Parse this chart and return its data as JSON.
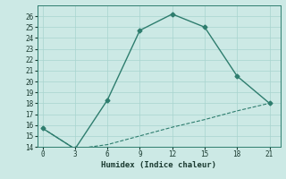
{
  "title": "",
  "xlabel": "Humidex (Indice chaleur)",
  "ylabel": "",
  "bg_color": "#cce9e5",
  "line_color": "#2e7d6e",
  "grid_color_major": "#a8d4cf",
  "grid_color_minor": "#d4eeeb",
  "series1_x": [
    0,
    3,
    6,
    9,
    12,
    15,
    18,
    21
  ],
  "series1_y": [
    15.7,
    13.8,
    18.3,
    24.7,
    26.2,
    25.0,
    20.5,
    18.0
  ],
  "series2_x": [
    0,
    3,
    6,
    9,
    12,
    15,
    18,
    21
  ],
  "series2_y": [
    15.7,
    13.8,
    14.2,
    15.0,
    15.8,
    16.5,
    17.3,
    18.0
  ],
  "xlim": [
    -0.5,
    22
  ],
  "ylim": [
    14,
    27
  ],
  "xticks": [
    0,
    3,
    6,
    9,
    12,
    15,
    18,
    21
  ],
  "yticks": [
    14,
    15,
    16,
    17,
    18,
    19,
    20,
    21,
    22,
    23,
    24,
    25,
    26
  ],
  "font_color": "#1a3a30",
  "marker": "D",
  "markersize": 2.5,
  "linewidth": 1.0,
  "tick_fontsize": 5.5,
  "xlabel_fontsize": 6.5
}
